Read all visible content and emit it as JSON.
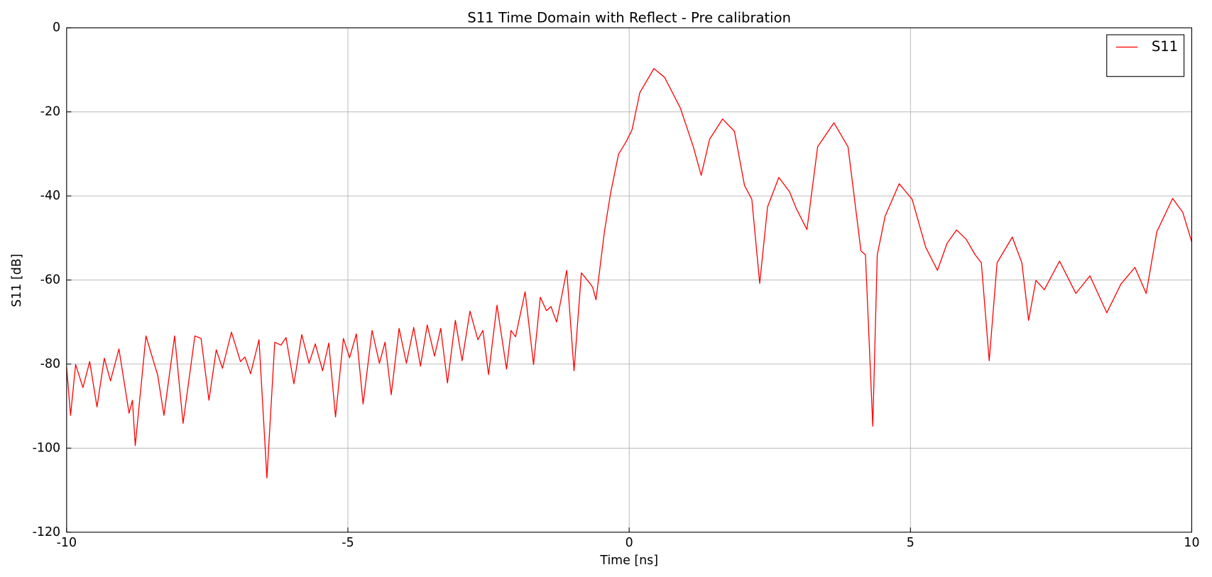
{
  "chart_data": {
    "type": "line",
    "title": "S11 Time Domain with Reflect - Pre calibration",
    "x_label": "Time [ns]",
    "y_label": "S11 [dB]",
    "xlim": [
      -10,
      10
    ],
    "ylim": [
      -120,
      0
    ],
    "xticks": [
      -10,
      -5,
      0,
      5,
      10
    ],
    "yticks": [
      -120,
      -100,
      -80,
      -60,
      -40,
      -20,
      0
    ],
    "grid": true,
    "legend": "upper right",
    "x": [
      -10,
      -9.93,
      -9.84,
      -9.71,
      -9.59,
      -9.46,
      -9.33,
      -9.22,
      -9.07,
      -8.89,
      -8.83,
      -8.78,
      -8.59,
      -8.38,
      -8.27,
      -8.08,
      -7.93,
      -7.72,
      -7.61,
      -7.47,
      -7.34,
      -7.23,
      -7.07,
      -6.91,
      -6.83,
      -6.73,
      -6.58,
      -6.44,
      -6.3,
      -6.19,
      -6.1,
      -5.96,
      -5.82,
      -5.69,
      -5.58,
      -5.45,
      -5.34,
      -5.22,
      -5.08,
      -4.97,
      -4.85,
      -4.73,
      -4.57,
      -4.44,
      -4.34,
      -4.23,
      -4.09,
      -3.96,
      -3.83,
      -3.71,
      -3.59,
      -3.46,
      -3.35,
      -3.23,
      -3.09,
      -2.97,
      -2.83,
      -2.69,
      -2.6,
      -2.5,
      -2.35,
      -2.18,
      -2.1,
      -2.02,
      -1.85,
      -1.7,
      -1.58,
      -1.47,
      -1.39,
      -1.29,
      -1.11,
      -0.98,
      -0.85,
      -0.71,
      -0.65,
      -0.59,
      -0.44,
      -0.33,
      -0.19,
      -0.05,
      0.05,
      0.19,
      0.44,
      0.63,
      0.91,
      1.14,
      1.28,
      1.43,
      1.66,
      1.87,
      2.05,
      2.18,
      2.32,
      2.46,
      2.66,
      2.85,
      2.97,
      3.16,
      3.35,
      3.64,
      3.89,
      4.12,
      4.2,
      4.33,
      4.41,
      4.55,
      4.8,
      5.03,
      5.27,
      5.48,
      5.65,
      5.82,
      5.99,
      6.15,
      6.26,
      6.4,
      6.54,
      6.81,
      6.98,
      7.1,
      7.23,
      7.38,
      7.65,
      7.94,
      8.19,
      8.49,
      8.74,
      8.99,
      9.19,
      9.38,
      9.66,
      9.84,
      10
    ],
    "series": [
      {
        "name": "S11",
        "color": "#ff0000",
        "values": [
          -80.7,
          -92.2,
          -80.1,
          -85.6,
          -79.4,
          -90.2,
          -78.6,
          -84.0,
          -76.4,
          -91.7,
          -88.6,
          -99.4,
          -73.3,
          -82.7,
          -92.2,
          -73.3,
          -94.1,
          -73.3,
          -73.9,
          -88.6,
          -76.6,
          -81.0,
          -72.4,
          -79.4,
          -78.3,
          -82.3,
          -74.2,
          -107.1,
          -74.8,
          -75.5,
          -73.7,
          -84.7,
          -73.0,
          -79.8,
          -75.2,
          -81.6,
          -75.0,
          -92.6,
          -73.9,
          -78.5,
          -72.8,
          -89.5,
          -72.0,
          -79.8,
          -74.8,
          -87.3,
          -71.5,
          -79.8,
          -71.3,
          -80.5,
          -70.7,
          -78.1,
          -71.5,
          -84.5,
          -69.6,
          -79.2,
          -67.4,
          -74.2,
          -72.0,
          -82.5,
          -66.0,
          -81.2,
          -72.0,
          -73.5,
          -62.8,
          -80.1,
          -64.1,
          -67.3,
          -66.3,
          -70.0,
          -57.7,
          -81.6,
          -58.3,
          -60.6,
          -61.7,
          -64.7,
          -48.5,
          -39.3,
          -30.1,
          -27.0,
          -24.3,
          -15.4,
          -9.7,
          -11.8,
          -19.1,
          -28.3,
          -35.1,
          -26.5,
          -21.7,
          -24.6,
          -37.5,
          -40.8,
          -60.8,
          -42.6,
          -35.6,
          -39.0,
          -43.0,
          -48.0,
          -28.3,
          -22.6,
          -28.3,
          -53.1,
          -54.0,
          -94.8,
          -54.0,
          -44.8,
          -37.1,
          -40.8,
          -52.2,
          -57.7,
          -51.3,
          -48.1,
          -50.3,
          -54.0,
          -55.9,
          -79.2,
          -55.9,
          -49.8,
          -55.9,
          -69.6,
          -60.1,
          -62.3,
          -55.5,
          -63.2,
          -59.0,
          -67.8,
          -61.0,
          -57.0,
          -63.2,
          -48.5,
          -40.6,
          -43.9,
          -50.9
        ]
      }
    ]
  }
}
